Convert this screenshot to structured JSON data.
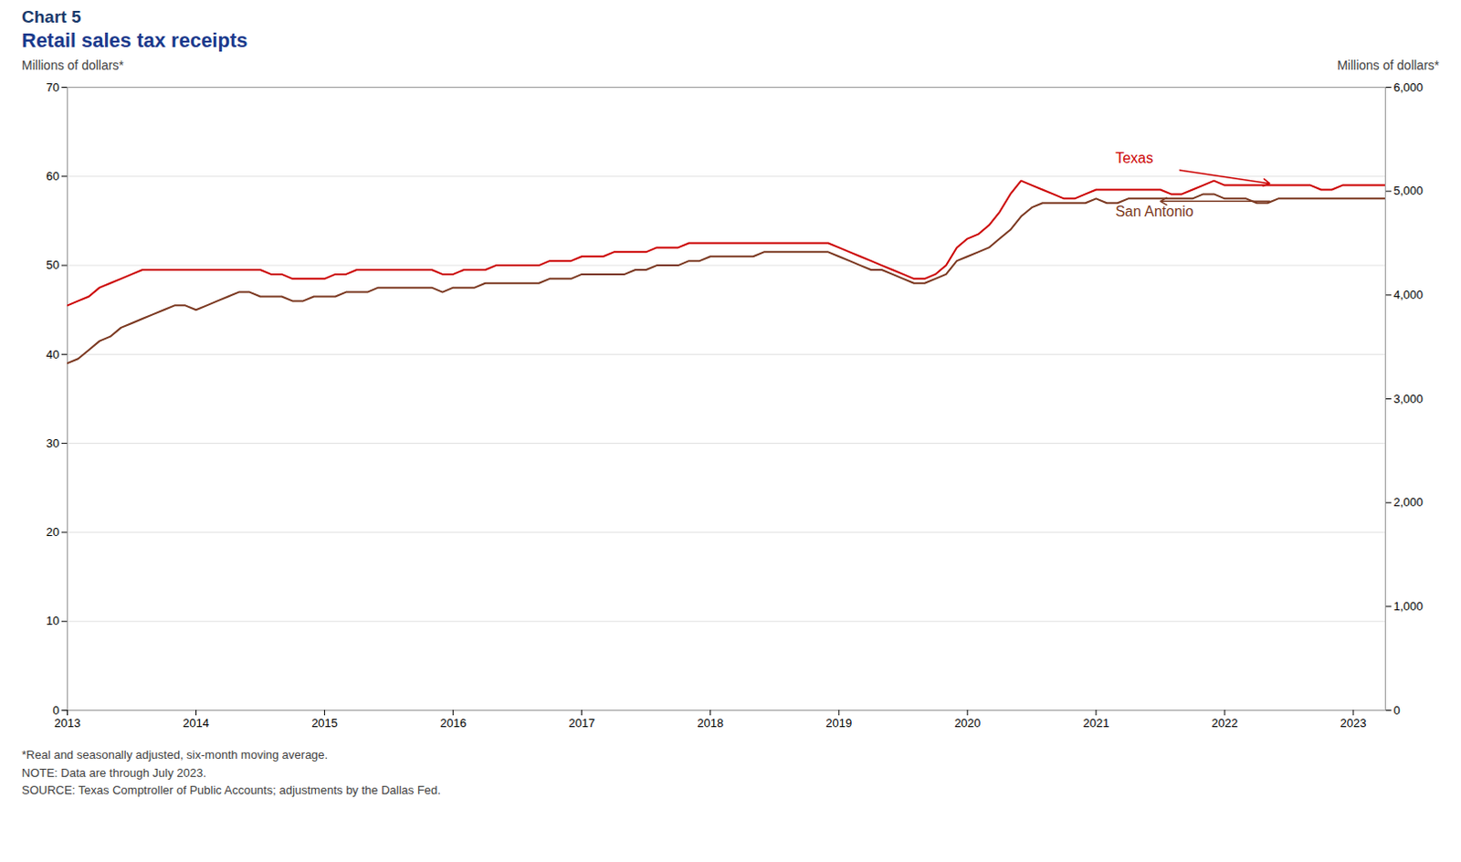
{
  "chart_data": {
    "type": "line",
    "title": "Chart 5",
    "subtitle": "Retail sales tax receipts",
    "y_label": "Millions of dollars*",
    "y2_label": "Millions of dollars*",
    "caption": "*Real and seasonally adjusted, six-month moving average.\nNOTE: Data are through July 2023.\nSOURCE: Texas Comptroller of Public Accounts; adjustments by the Dallas Fed.",
    "x": [
      2013.0,
      2013.0833333333333,
      2013.1666666666667,
      2013.25,
      2013.3333333333333,
      2013.4166666666667,
      2013.5,
      2013.5833333333333,
      2013.6666666666667,
      2013.75,
      2013.8333333333333,
      2013.9166666666667,
      2014.0,
      2014.0833333333333,
      2014.1666666666667,
      2014.25,
      2014.3333333333333,
      2014.4166666666667,
      2014.5,
      2014.5833333333333,
      2014.6666666666667,
      2014.75,
      2014.8333333333333,
      2014.9166666666667,
      2015.0,
      2015.0833333333333,
      2015.1666666666667,
      2015.25,
      2015.3333333333333,
      2015.4166666666667,
      2015.5,
      2015.5833333333333,
      2015.6666666666667,
      2015.75,
      2015.8333333333333,
      2015.9166666666667,
      2016.0,
      2016.0833333333333,
      2016.1666666666667,
      2016.25,
      2016.3333333333333,
      2016.4166666666667,
      2016.5,
      2016.5833333333333,
      2016.6666666666667,
      2016.75,
      2016.8333333333333,
      2016.9166666666667,
      2017.0,
      2017.0833333333333,
      2017.1666666666667,
      2017.25,
      2017.3333333333333,
      2017.4166666666667,
      2017.5,
      2017.5833333333333,
      2017.6666666666667,
      2017.75,
      2017.8333333333333,
      2017.9166666666667,
      2018.0,
      2018.0833333333333,
      2018.1666666666667,
      2018.25,
      2018.3333333333333,
      2018.4166666666667,
      2018.5,
      2018.5833333333333,
      2018.6666666666667,
      2018.75,
      2018.8333333333333,
      2018.9166666666667,
      2019.0,
      2019.0833333333333,
      2019.1666666666667,
      2019.25,
      2019.3333333333333,
      2019.4166666666667,
      2019.5,
      2019.5833333333333,
      2019.6666666666667,
      2019.75,
      2019.8333333333333,
      2019.9166666666667,
      2020.0,
      2020.0833333333333,
      2020.1666666666667,
      2020.25,
      2020.3333333333333,
      2020.4166666666667,
      2020.5,
      2020.5833333333333,
      2020.6666666666667,
      2020.75,
      2020.8333333333333,
      2020.9166666666667,
      2021.0,
      2021.0833333333333,
      2021.1666666666667,
      2021.25,
      2021.3333333333333,
      2021.4166666666667,
      2021.5,
      2021.5833333333333,
      2021.6666666666667,
      2021.75,
      2021.8333333333333,
      2021.9166666666667,
      2022.0,
      2022.0833333333333,
      2022.1666666666667,
      2022.25,
      2022.3333333333333,
      2022.4166666666667,
      2022.5,
      2022.5833333333333,
      2022.6666666666667,
      2022.75,
      2022.8333333333333,
      2022.9166666666667,
      2023.0,
      2023.0833333333333,
      2023.1666666666667,
      2023.25,
      2023.3333333333333,
      2023.4166666666667
    ],
    "series": [
      {
        "name": "San Antonio",
        "color": "#7b3820",
        "values": [
          39.0,
          39.5,
          40.5,
          41.5,
          42.0,
          43.0,
          43.5,
          44.0,
          44.5,
          45.0,
          45.5,
          45.5,
          45.0,
          45.5,
          46.0,
          46.5,
          47.0,
          47.0,
          46.5,
          46.5,
          46.5,
          46.0,
          46.0,
          46.5,
          46.5,
          46.5,
          47.0,
          47.0,
          47.0,
          47.5,
          47.5,
          47.5,
          47.5,
          47.5,
          47.5,
          47.0,
          47.5,
          47.5,
          47.5,
          48.0,
          48.0,
          48.0,
          48.0,
          48.0,
          48.0,
          48.5,
          48.5,
          48.5,
          49.0,
          49.0,
          49.0,
          49.0,
          49.0,
          49.5,
          49.5,
          50.0,
          50.0,
          50.0,
          50.5,
          50.5,
          51.0,
          51.0,
          51.0,
          51.0,
          51.0,
          51.5,
          51.5,
          51.5,
          51.5,
          51.5,
          51.5,
          51.5,
          51.0,
          50.5,
          50.0,
          49.5,
          49.5,
          49.0,
          48.5,
          48.0,
          48.0,
          48.5,
          49.0,
          50.5,
          51.0,
          51.5,
          52.0,
          53.0,
          54.0,
          55.5,
          56.5,
          57.0,
          57.0,
          57.0,
          57.0,
          57.0,
          57.5,
          57.0,
          57.0,
          57.5,
          57.5,
          57.5,
          57.5,
          57.5,
          57.5,
          57.5,
          58.0,
          58.0,
          57.5,
          57.5,
          57.5,
          57.0,
          57.0,
          57.5,
          57.5,
          57.5,
          57.5,
          57.5,
          57.5,
          57.5,
          57.5,
          57.5,
          57.5,
          57.5,
          57.5,
          57.5
        ]
      },
      {
        "name": "Texas",
        "color": "#cc0000",
        "values": [
          45.5,
          46.0,
          46.5,
          47.5,
          48.0,
          48.5,
          49.0,
          49.5,
          49.5,
          49.5,
          49.5,
          49.5,
          49.5,
          49.5,
          49.5,
          49.5,
          49.5,
          49.5,
          49.5,
          49.0,
          49.0,
          48.5,
          48.5,
          48.5,
          48.5,
          49.0,
          49.0,
          49.5,
          49.5,
          49.5,
          49.5,
          49.5,
          49.5,
          49.5,
          49.5,
          49.0,
          49.0,
          49.5,
          49.5,
          49.5,
          50.0,
          50.0,
          50.0,
          50.0,
          50.0,
          50.5,
          50.5,
          50.5,
          51.0,
          51.0,
          51.0,
          51.5,
          51.5,
          51.5,
          51.5,
          52.0,
          52.0,
          52.0,
          52.5,
          52.5,
          52.5,
          52.5,
          52.5,
          52.5,
          52.5,
          52.5,
          52.5,
          52.5,
          52.5,
          52.5,
          52.5,
          52.5,
          52.0,
          51.5,
          51.0,
          50.5,
          50.0,
          49.5,
          49.0,
          48.5,
          48.5,
          49.0,
          50.0,
          52.0,
          53.0,
          53.5,
          54.5,
          56.0,
          58.0,
          59.5,
          59.0,
          58.5,
          58.0,
          57.5,
          57.5,
          58.0,
          58.5,
          58.5,
          58.5,
          58.5,
          58.5,
          58.5,
          58.5,
          58.0,
          58.0,
          58.5,
          59.0,
          59.5,
          59.0,
          59.0,
          59.0,
          59.0,
          59.0,
          59.0,
          59.0,
          59.0,
          59.0,
          58.5,
          58.5,
          59.0,
          59.0,
          59.0,
          59.0,
          59.0,
          59.0,
          59.0
        ]
      }
    ],
    "xlim": [
      2013.0,
      2023.25
    ],
    "xticks": [
      2013,
      2014,
      2015,
      2016,
      2017,
      2018,
      2019,
      2020,
      2021,
      2022,
      2023
    ],
    "ylim": [
      0,
      70
    ],
    "yticks": [
      0,
      10,
      20,
      30,
      40,
      50,
      60,
      70
    ],
    "y2lim": [
      0,
      6000
    ],
    "y2ticks": [
      0,
      {
        "value": 1000,
        "label": "1,000"
      },
      {
        "value": 2000,
        "label": "2,000"
      },
      {
        "value": 3000,
        "label": "3,000"
      },
      {
        "value": 4000,
        "label": "4,000"
      },
      {
        "value": 5000,
        "label": "5,000"
      },
      {
        "value": 6000,
        "label": "6,000"
      }
    ],
    "grid": true,
    "annotations": [
      {
        "text": "Texas",
        "x": 2021.15,
        "y": 62.0,
        "color": "#cc0000",
        "arrow_from": [
          2021.65,
          60.7
        ],
        "arrow_to": [
          2022.35,
          59.2
        ]
      },
      {
        "text": "San Antonio",
        "x": 2021.15,
        "y": 56.0,
        "color": "#7b3820",
        "arrow_from": [
          2022.35,
          57.2
        ],
        "arrow_to": [
          2021.5,
          57.2
        ]
      }
    ]
  }
}
